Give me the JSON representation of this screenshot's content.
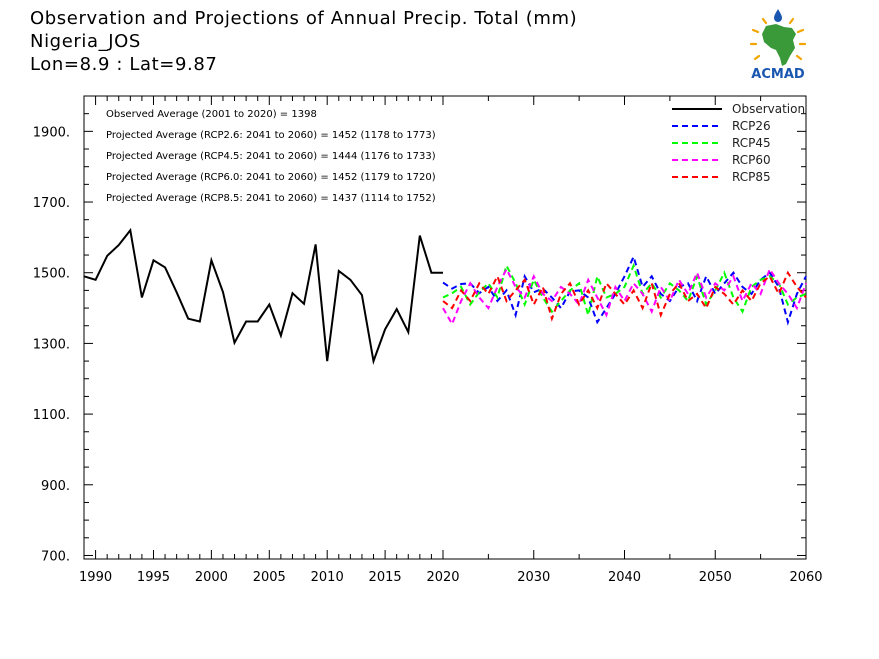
{
  "header": {
    "title": "Observation and Projections of Annual Precip. Total (mm)",
    "location": "Nigeria_JOS",
    "coords": "Lon=8.9 : Lat=9.87"
  },
  "logo": {
    "text": "ACMAD",
    "icon": "africa-map-logo-icon",
    "colors": {
      "africa": "#3a9a3a",
      "sun": "#f2a500",
      "text": "#1a57b0",
      "drop": "#1a57b0"
    }
  },
  "colors": {
    "observation": "#000000",
    "RCP26": "#0000ff",
    "RCP45": "#00ff00",
    "RCP60": "#ff00ff",
    "RCP85": "#ff0000"
  },
  "chart_data": {
    "type": "line",
    "xlim": [
      1989,
      2060
    ],
    "ylim": [
      690,
      2000
    ],
    "xticks": [
      1990,
      1995,
      2000,
      2005,
      2010,
      2015,
      2020,
      2030,
      2040,
      2050,
      2060
    ],
    "yticks": [
      700,
      900,
      1100,
      1300,
      1500,
      1700,
      1900
    ],
    "ytick_labels": [
      "700.",
      "900.",
      "1100.",
      "1300.",
      "1500.",
      "1700.",
      "1900."
    ],
    "annotations": [
      "Observed Average (2001 to 2020) = 1398",
      "Projected Average (RCP2.6: 2041 to 2060) = 1452 (1178 to 1773)",
      "Projected Average (RCP4.5: 2041 to 2060) = 1444 (1176 to 1733)",
      "Projected Average (RCP6.0: 2041 to 2060) = 1452 (1179 to 1720)",
      "Projected Average (RCP8.5: 2041 to 2060) = 1437 (1114 to 1752)"
    ],
    "legend_position": "top-right",
    "series": [
      {
        "name": "Observation",
        "style": "solid",
        "color": "#000000",
        "x": [
          1989,
          1990,
          1991,
          1992,
          1993,
          1994,
          1995,
          1996,
          1997,
          1998,
          1999,
          2000,
          2001,
          2002,
          2003,
          2004,
          2005,
          2006,
          2007,
          2008,
          2009,
          2010,
          2011,
          2012,
          2013,
          2014,
          2015,
          2016,
          2017,
          2018,
          2019,
          2020
        ],
        "y": [
          1490,
          1480,
          1548,
          1578,
          1620,
          1430,
          1535,
          1515,
          1445,
          1370,
          1362,
          1535,
          1445,
          1302,
          1362,
          1362,
          1410,
          1322,
          1442,
          1412,
          1580,
          1250,
          1505,
          1480,
          1437,
          1250,
          1340,
          1397,
          1332,
          1605,
          1500,
          1500
        ]
      },
      {
        "name": "RCP26",
        "style": "dashed",
        "color": "#0000ff",
        "x": [
          2020,
          2021,
          2022,
          2023,
          2024,
          2025,
          2026,
          2027,
          2028,
          2029,
          2030,
          2031,
          2032,
          2033,
          2034,
          2035,
          2036,
          2037,
          2038,
          2039,
          2040,
          2041,
          2042,
          2043,
          2044,
          2045,
          2046,
          2047,
          2048,
          2049,
          2050,
          2051,
          2052,
          2053,
          2054,
          2055,
          2056,
          2057,
          2058,
          2059,
          2060
        ],
        "y": [
          1472,
          1455,
          1468,
          1470,
          1442,
          1460,
          1420,
          1450,
          1380,
          1490,
          1445,
          1455,
          1430,
          1400,
          1447,
          1450,
          1430,
          1360,
          1400,
          1440,
          1490,
          1545,
          1460,
          1490,
          1440,
          1420,
          1460,
          1470,
          1420,
          1490,
          1440,
          1470,
          1500,
          1460,
          1440,
          1480,
          1500,
          1460,
          1360,
          1440,
          1490
        ]
      },
      {
        "name": "RCP45",
        "style": "dashed",
        "color": "#00ff00",
        "x": [
          2020,
          2021,
          2022,
          2023,
          2024,
          2025,
          2026,
          2027,
          2028,
          2029,
          2030,
          2031,
          2032,
          2033,
          2034,
          2035,
          2036,
          2037,
          2038,
          2039,
          2040,
          2041,
          2042,
          2043,
          2044,
          2045,
          2046,
          2047,
          2048,
          2049,
          2050,
          2051,
          2052,
          2053,
          2054,
          2055,
          2056,
          2057,
          2058,
          2059,
          2060
        ],
        "y": [
          1430,
          1442,
          1460,
          1410,
          1445,
          1470,
          1430,
          1520,
          1470,
          1410,
          1480,
          1430,
          1390,
          1420,
          1450,
          1470,
          1380,
          1490,
          1430,
          1440,
          1460,
          1520,
          1440,
          1470,
          1430,
          1470,
          1450,
          1420,
          1490,
          1410,
          1450,
          1500,
          1430,
          1390,
          1460,
          1480,
          1490,
          1470,
          1410,
          1430,
          1440
        ]
      },
      {
        "name": "RCP60",
        "style": "dashed",
        "color": "#ff00ff",
        "x": [
          2020,
          2021,
          2022,
          2023,
          2024,
          2025,
          2026,
          2027,
          2028,
          2029,
          2030,
          2031,
          2032,
          2033,
          2034,
          2035,
          2036,
          2037,
          2038,
          2039,
          2040,
          2041,
          2042,
          2043,
          2044,
          2045,
          2046,
          2047,
          2048,
          2049,
          2050,
          2051,
          2052,
          2053,
          2054,
          2055,
          2056,
          2057,
          2058,
          2059,
          2060
        ],
        "y": [
          1400,
          1355,
          1420,
          1470,
          1430,
          1400,
          1460,
          1510,
          1460,
          1430,
          1490,
          1440,
          1420,
          1460,
          1440,
          1410,
          1480,
          1430,
          1380,
          1460,
          1420,
          1470,
          1440,
          1390,
          1460,
          1420,
          1480,
          1440,
          1500,
          1430,
          1470,
          1450,
          1490,
          1420,
          1470,
          1440,
          1510,
          1470,
          1440,
          1400,
          1470
        ]
      },
      {
        "name": "RCP85",
        "style": "dashed",
        "color": "#ff0000",
        "x": [
          2020,
          2021,
          2022,
          2023,
          2024,
          2025,
          2026,
          2027,
          2028,
          2029,
          2030,
          2031,
          2032,
          2033,
          2034,
          2035,
          2036,
          2037,
          2038,
          2039,
          2040,
          2041,
          2042,
          2043,
          2044,
          2045,
          2046,
          2047,
          2048,
          2049,
          2050,
          2051,
          2052,
          2053,
          2054,
          2055,
          2056,
          2057,
          2058,
          2059,
          2060
        ],
        "y": [
          1420,
          1400,
          1450,
          1420,
          1470,
          1440,
          1490,
          1420,
          1450,
          1480,
          1410,
          1460,
          1370,
          1440,
          1470,
          1410,
          1450,
          1400,
          1470,
          1440,
          1410,
          1450,
          1400,
          1470,
          1380,
          1440,
          1470,
          1420,
          1440,
          1400,
          1460,
          1440,
          1410,
          1450,
          1420,
          1470,
          1490,
          1440,
          1500,
          1460,
          1430
        ]
      }
    ]
  }
}
